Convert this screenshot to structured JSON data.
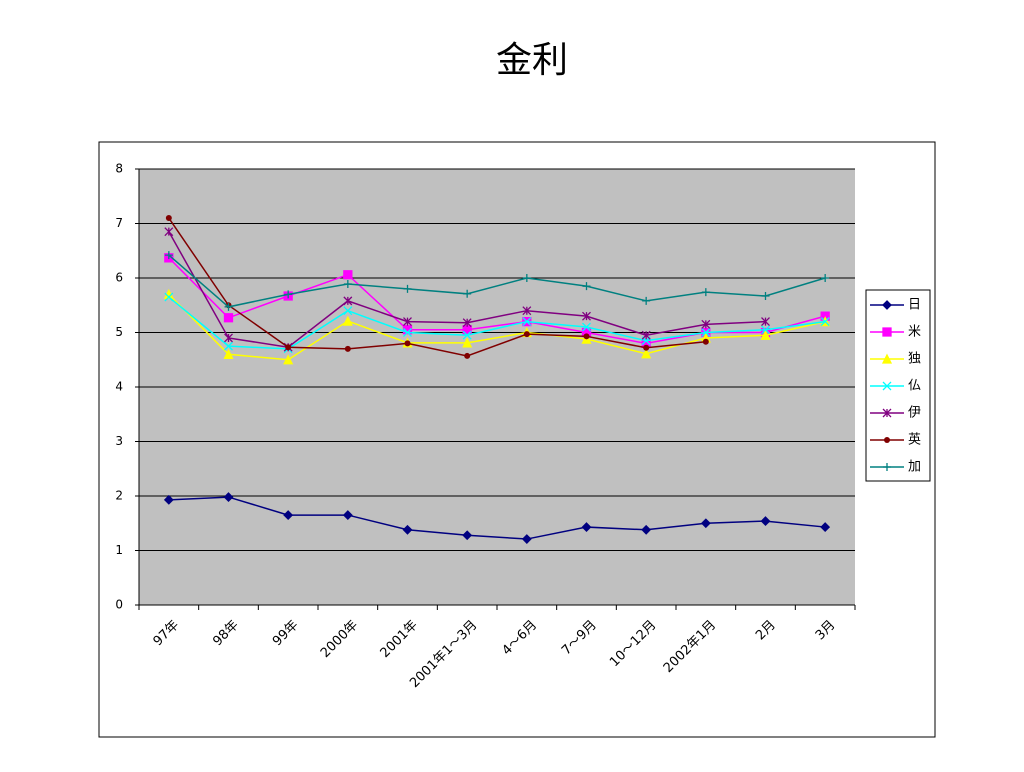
{
  "chart_data": {
    "type": "line",
    "title": "金利",
    "categories": [
      "97年",
      "98年",
      "99年",
      "2000年",
      "2001年",
      "2001年1～3月",
      "4～6月",
      "7～9月",
      "10～12月",
      "2002年1月",
      "2月",
      "3月"
    ],
    "series": [
      {
        "name": "日",
        "color": "#000080",
        "marker": "diamond",
        "values": [
          1.93,
          1.98,
          1.65,
          1.65,
          1.38,
          1.28,
          1.21,
          1.43,
          1.38,
          1.5,
          1.54,
          1.43
        ]
      },
      {
        "name": "米",
        "color": "#ff00ff",
        "marker": "square",
        "values": [
          6.37,
          5.27,
          5.67,
          6.06,
          5.05,
          5.05,
          5.2,
          5.0,
          4.8,
          5.0,
          5.0,
          5.3
        ]
      },
      {
        "name": "独",
        "color": "#ffff00",
        "marker": "triangle",
        "values": [
          5.7,
          4.6,
          4.5,
          5.21,
          4.81,
          4.81,
          5.0,
          4.88,
          4.61,
          4.9,
          4.95,
          5.2
        ]
      },
      {
        "name": "仏",
        "color": "#00ffff",
        "marker": "x",
        "values": [
          5.65,
          4.75,
          4.7,
          5.4,
          5.0,
          4.95,
          5.2,
          5.1,
          4.85,
          5.0,
          5.05,
          5.2
        ]
      },
      {
        "name": "伊",
        "color": "#800080",
        "marker": "asterisk",
        "values": [
          6.85,
          4.9,
          4.73,
          5.58,
          5.2,
          5.18,
          5.4,
          5.3,
          4.95,
          5.15,
          5.2,
          null
        ]
      },
      {
        "name": "英",
        "color": "#800000",
        "marker": "circle",
        "values": [
          7.1,
          5.5,
          4.73,
          4.7,
          4.8,
          4.57,
          4.97,
          4.93,
          4.72,
          4.83,
          null,
          null
        ]
      },
      {
        "name": "加",
        "color": "#008080",
        "marker": "plus",
        "values": [
          6.42,
          5.47,
          5.7,
          5.89,
          5.8,
          5.71,
          6.0,
          5.85,
          5.58,
          5.74,
          5.67,
          6.0
        ]
      }
    ],
    "ylim": [
      0,
      8
    ],
    "yticks": [
      0,
      1,
      2,
      3,
      4,
      5,
      6,
      7,
      8
    ],
    "grid": true,
    "legend": "right"
  }
}
